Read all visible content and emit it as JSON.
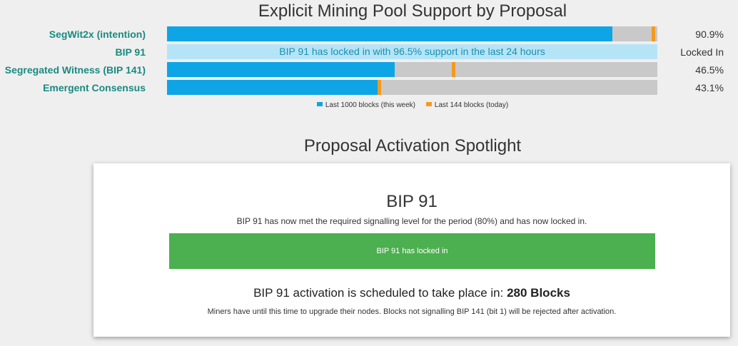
{
  "title": "Explicit Mining Pool Support by Proposal",
  "colors": {
    "week": "#0ea5e6",
    "today": "#f39a1e",
    "track": "#c9c9c9",
    "locked_bg": "#b5e4f7",
    "locked_text": "#1890b0",
    "label": "#1a8a80",
    "status_green": "#4caf50"
  },
  "proposals": [
    {
      "label": "SegWit2x (intention)",
      "week_percent": 90.9,
      "today_percent": 99.3,
      "value": "90.9%"
    },
    {
      "label": "BIP 91",
      "locked_message": "BIP 91 has locked in with 96.5% support in the last 24 hours",
      "value": "Locked In"
    },
    {
      "label": "Segregated Witness (BIP 141)",
      "week_percent": 46.5,
      "today_percent": 58.5,
      "value": "46.5%"
    },
    {
      "label": "Emergent Consensus",
      "week_percent": 43.1,
      "today_percent": 43.4,
      "value": "43.1%"
    }
  ],
  "legend": {
    "week": "Last 1000 blocks (this week)",
    "today": "Last 144 blocks (today)"
  },
  "spotlight": {
    "section_title": "Proposal Activation Spotlight",
    "title": "BIP 91",
    "description": "BIP 91 has now met the required signalling level for the period (80%) and has now locked in.",
    "status": "BIP 91 has locked in",
    "activation_prefix": "BIP 91 activation is scheduled to take place in:",
    "activation_blocks": "280 Blocks",
    "note": "Miners have until this time to upgrade their nodes. Blocks not signalling BIP 141 (bit 1) will be rejected after activation."
  }
}
